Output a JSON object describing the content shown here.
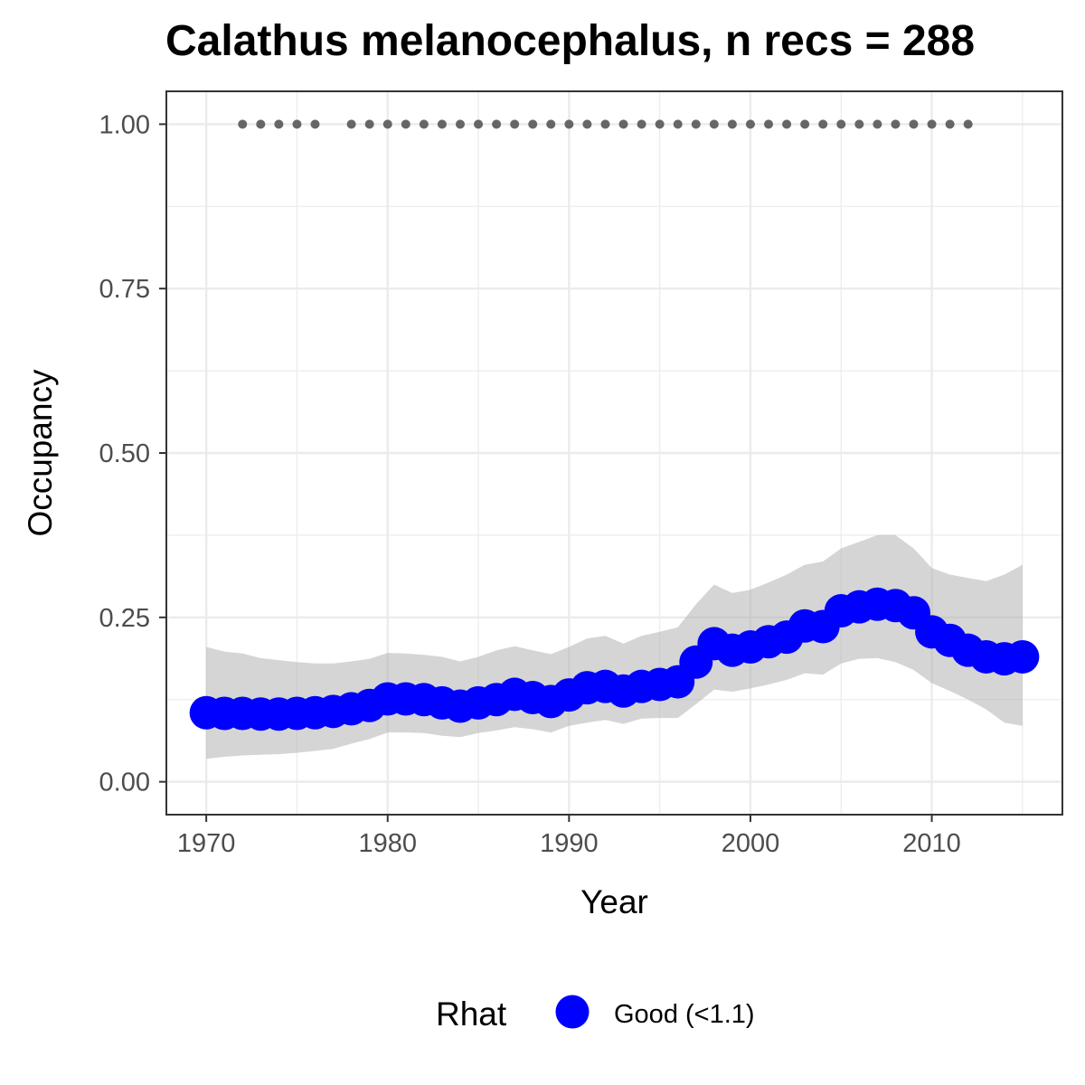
{
  "chart_data": {
    "type": "line",
    "title": "Calathus melanocephalus, n recs = 288",
    "xlabel": "Year",
    "ylabel": "Occupancy",
    "xlim": [
      1967.8,
      2017.2
    ],
    "ylim": [
      -0.05,
      1.05
    ],
    "x_ticks": [
      {
        "value": 1970,
        "label": "1970"
      },
      {
        "value": 1980,
        "label": "1980"
      },
      {
        "value": 1990,
        "label": "1990"
      },
      {
        "value": 2000,
        "label": "2000"
      },
      {
        "value": 2010,
        "label": "2010"
      }
    ],
    "y_ticks": [
      {
        "value": 0.0,
        "label": "0.00"
      },
      {
        "value": 0.25,
        "label": "0.25"
      },
      {
        "value": 0.5,
        "label": "0.50"
      },
      {
        "value": 0.75,
        "label": "0.75"
      },
      {
        "value": 1.0,
        "label": "1.00"
      }
    ],
    "grid": true,
    "legend": {
      "position": "bottom",
      "title": "Rhat",
      "entries": [
        {
          "label": "Good (<1.1)",
          "color": "#0000ff"
        }
      ]
    },
    "colors": {
      "points": "#0000ff",
      "ribbon": "#b3b3b3",
      "records": "#666666",
      "grid": "#ebebeb",
      "border": "#333333"
    },
    "years": [
      1970,
      1971,
      1972,
      1973,
      1974,
      1975,
      1976,
      1977,
      1978,
      1979,
      1980,
      1981,
      1982,
      1983,
      1984,
      1985,
      1986,
      1987,
      1988,
      1989,
      1990,
      1991,
      1992,
      1993,
      1994,
      1995,
      1996,
      1997,
      1998,
      1999,
      2000,
      2001,
      2002,
      2003,
      2004,
      2005,
      2006,
      2007,
      2008,
      2009,
      2010,
      2011,
      2012,
      2013,
      2014,
      2015
    ],
    "occupancy": [
      0.105,
      0.104,
      0.104,
      0.103,
      0.103,
      0.104,
      0.105,
      0.107,
      0.111,
      0.116,
      0.126,
      0.126,
      0.125,
      0.12,
      0.115,
      0.12,
      0.125,
      0.133,
      0.128,
      0.122,
      0.132,
      0.143,
      0.145,
      0.138,
      0.145,
      0.148,
      0.152,
      0.182,
      0.21,
      0.2,
      0.205,
      0.213,
      0.22,
      0.237,
      0.236,
      0.26,
      0.266,
      0.27,
      0.268,
      0.257,
      0.228,
      0.215,
      0.2,
      0.19,
      0.187,
      0.19
    ],
    "lower": [
      0.035,
      0.038,
      0.04,
      0.041,
      0.042,
      0.044,
      0.047,
      0.05,
      0.058,
      0.065,
      0.075,
      0.075,
      0.074,
      0.07,
      0.068,
      0.074,
      0.078,
      0.083,
      0.08,
      0.075,
      0.085,
      0.09,
      0.094,
      0.088,
      0.096,
      0.097,
      0.097,
      0.118,
      0.14,
      0.137,
      0.142,
      0.148,
      0.155,
      0.165,
      0.163,
      0.18,
      0.187,
      0.188,
      0.182,
      0.17,
      0.15,
      0.138,
      0.125,
      0.11,
      0.09,
      0.085
    ],
    "upper": [
      0.205,
      0.198,
      0.195,
      0.188,
      0.185,
      0.182,
      0.18,
      0.18,
      0.183,
      0.187,
      0.196,
      0.195,
      0.193,
      0.19,
      0.183,
      0.19,
      0.2,
      0.206,
      0.2,
      0.194,
      0.205,
      0.218,
      0.222,
      0.21,
      0.222,
      0.228,
      0.235,
      0.27,
      0.3,
      0.287,
      0.292,
      0.303,
      0.315,
      0.33,
      0.335,
      0.355,
      0.365,
      0.375,
      0.375,
      0.355,
      0.325,
      0.315,
      0.31,
      0.305,
      0.315,
      0.33
    ],
    "record_years": [
      1972,
      1973,
      1974,
      1975,
      1976,
      1978,
      1979,
      1980,
      1981,
      1982,
      1983,
      1984,
      1985,
      1986,
      1987,
      1988,
      1989,
      1990,
      1991,
      1992,
      1993,
      1994,
      1995,
      1996,
      1997,
      1998,
      1999,
      2000,
      2001,
      2002,
      2003,
      2004,
      2005,
      2006,
      2007,
      2008,
      2009,
      2010,
      2011,
      2012
    ],
    "record_value": 1.0
  }
}
